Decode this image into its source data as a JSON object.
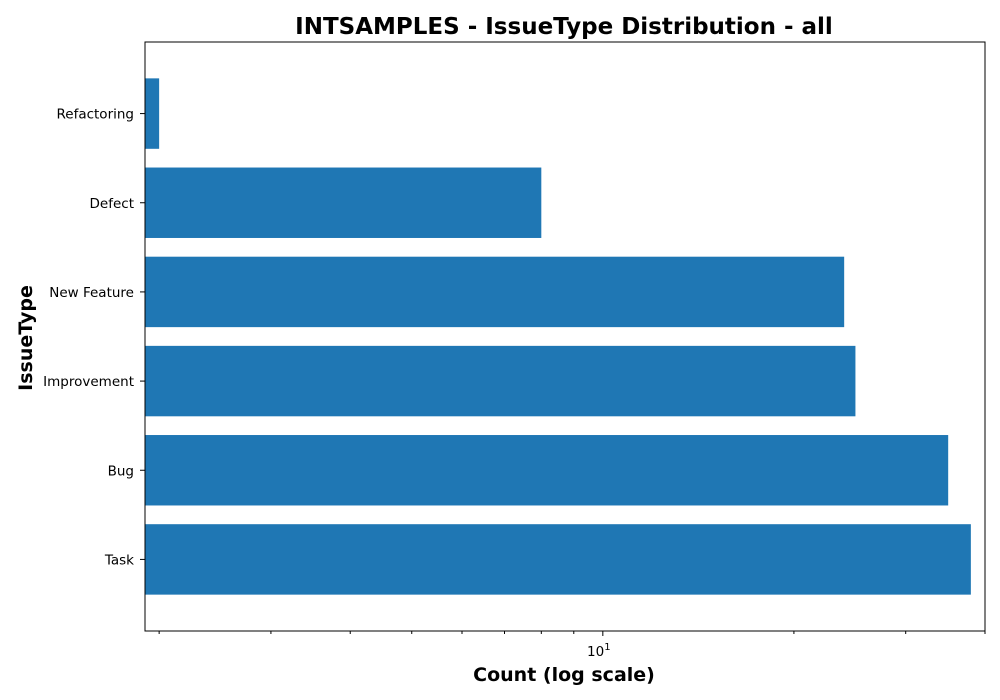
{
  "chart_data": {
    "type": "bar",
    "orientation": "horizontal",
    "title": "INTSAMPLES - IssueType Distribution - all",
    "xlabel": "Count (log scale)",
    "ylabel": "IssueType",
    "x_scale": "log",
    "xlim": [
      1.9,
      40
    ],
    "x_major_ticks": [
      {
        "value": 10,
        "base": "10",
        "exponent": "1"
      }
    ],
    "x_minor_ticks": [
      2,
      3,
      4,
      5,
      6,
      7,
      8,
      9,
      20,
      30,
      40
    ],
    "categories": [
      "Task",
      "Bug",
      "Improvement",
      "New Feature",
      "Defect",
      "Refactoring"
    ],
    "values": [
      38,
      35,
      25,
      24,
      8,
      2
    ],
    "bar_color": "#1f77b4",
    "grid": false,
    "legend": "none"
  }
}
